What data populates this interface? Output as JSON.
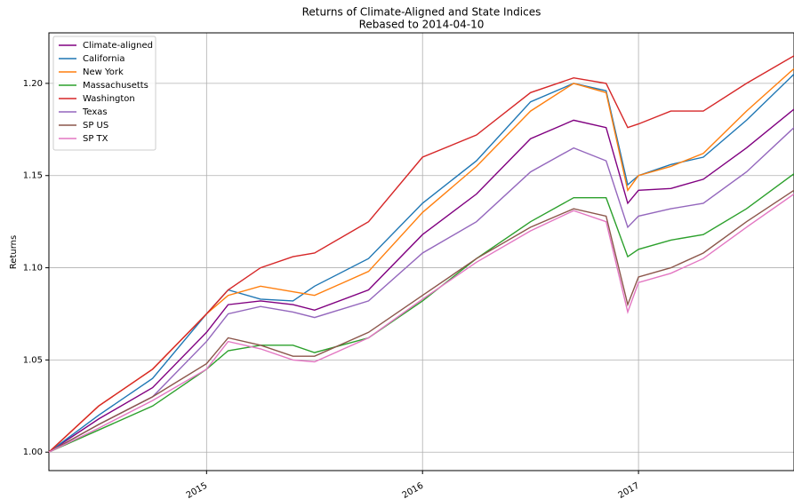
{
  "chart_data": {
    "type": "line",
    "title": "Returns of Climate-Aligned and State Indices",
    "subtitle": "Rebased to 2014-04-10",
    "y_label": "Returns",
    "x": [
      2014.27,
      2014.5,
      2014.75,
      2015.0,
      2015.1,
      2015.25,
      2015.4,
      2015.5,
      2015.75,
      2016.0,
      2016.25,
      2016.5,
      2016.7,
      2016.85,
      2016.95,
      2017.0,
      2017.15,
      2017.3,
      2017.5,
      2017.72
    ],
    "series": [
      {
        "name": "Climate-aligned",
        "color": "#800080",
        "values": [
          1.0,
          1.018,
          1.035,
          1.065,
          1.08,
          1.082,
          1.08,
          1.077,
          1.088,
          1.118,
          1.14,
          1.17,
          1.18,
          1.176,
          1.135,
          1.142,
          1.143,
          1.148,
          1.165,
          1.186
        ]
      },
      {
        "name": "California",
        "color": "#1f77b4",
        "values": [
          1.0,
          1.02,
          1.04,
          1.075,
          1.088,
          1.083,
          1.082,
          1.09,
          1.105,
          1.135,
          1.158,
          1.19,
          1.2,
          1.196,
          1.145,
          1.15,
          1.156,
          1.16,
          1.18,
          1.205
        ]
      },
      {
        "name": "New York",
        "color": "#ff7f0e",
        "values": [
          1.0,
          1.025,
          1.045,
          1.075,
          1.085,
          1.09,
          1.087,
          1.085,
          1.098,
          1.13,
          1.155,
          1.185,
          1.2,
          1.195,
          1.142,
          1.15,
          1.155,
          1.162,
          1.185,
          1.208
        ]
      },
      {
        "name": "Massachusetts",
        "color": "#2ca02c",
        "values": [
          1.0,
          1.012,
          1.025,
          1.045,
          1.055,
          1.058,
          1.058,
          1.054,
          1.062,
          1.082,
          1.105,
          1.125,
          1.138,
          1.138,
          1.106,
          1.11,
          1.115,
          1.118,
          1.132,
          1.151
        ]
      },
      {
        "name": "Washington",
        "color": "#d62728",
        "values": [
          1.0,
          1.025,
          1.045,
          1.075,
          1.088,
          1.1,
          1.106,
          1.108,
          1.125,
          1.16,
          1.172,
          1.195,
          1.203,
          1.2,
          1.176,
          1.178,
          1.185,
          1.185,
          1.2,
          1.215
        ]
      },
      {
        "name": "Texas",
        "color": "#9467bd",
        "values": [
          1.0,
          1.015,
          1.03,
          1.06,
          1.075,
          1.079,
          1.076,
          1.073,
          1.082,
          1.108,
          1.125,
          1.152,
          1.165,
          1.158,
          1.122,
          1.128,
          1.132,
          1.135,
          1.152,
          1.176
        ]
      },
      {
        "name": "SP US",
        "color": "#8c564b",
        "values": [
          1.0,
          1.015,
          1.03,
          1.048,
          1.062,
          1.058,
          1.052,
          1.052,
          1.065,
          1.085,
          1.105,
          1.122,
          1.132,
          1.128,
          1.08,
          1.095,
          1.1,
          1.108,
          1.125,
          1.142
        ]
      },
      {
        "name": "SP TX",
        "color": "#e377c2",
        "values": [
          1.0,
          1.013,
          1.028,
          1.045,
          1.06,
          1.056,
          1.05,
          1.049,
          1.062,
          1.083,
          1.103,
          1.12,
          1.131,
          1.125,
          1.076,
          1.092,
          1.097,
          1.105,
          1.122,
          1.14
        ]
      }
    ],
    "xlim": [
      2014.27,
      2017.72
    ],
    "xticks": [
      2015,
      2016,
      2017
    ],
    "ylim": [
      0.99,
      1.2274
    ],
    "yticks": [
      {
        "value": 1.0,
        "label": "1.00"
      },
      1.05,
      {
        "value": 1.1,
        "label": "1.10"
      },
      1.15,
      {
        "value": 1.2,
        "label": "1.20"
      }
    ],
    "grid": true,
    "legend": "upper left"
  }
}
